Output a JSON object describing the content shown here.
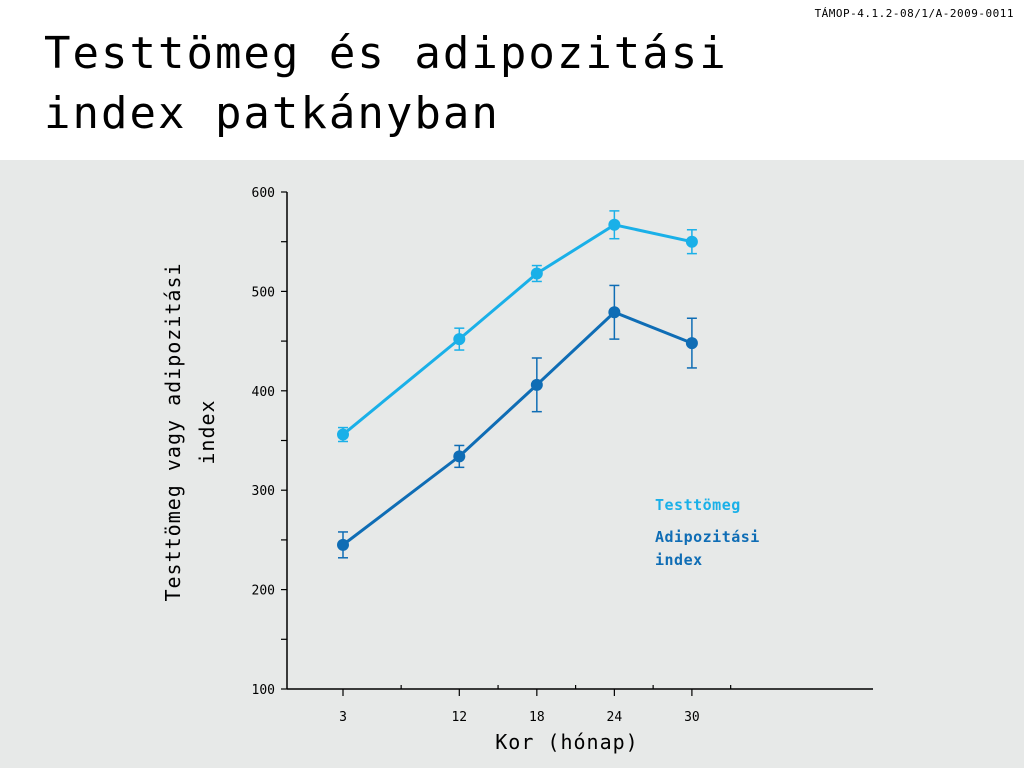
{
  "header": {
    "project_code": "TÁMOP-4.1.2-08/1/A-2009-0011",
    "title_line1": "Testtömeg és adipozitási",
    "title_line2": "index patkányban"
  },
  "colors": {
    "panel_bg": "#e7e9e8",
    "body_weight": "#1ab0e8",
    "adiposity": "#0f6db5"
  },
  "chart_data": {
    "type": "line",
    "title": "",
    "xlabel": "Kor (hónap)",
    "ylabel_lines": [
      "Testtömeg vagy adipozitási",
      "index"
    ],
    "x": [
      3,
      12,
      18,
      24,
      30
    ],
    "x_ticks": [
      "3",
      "12",
      "18",
      "24",
      "30"
    ],
    "xlim": [
      0,
      35
    ],
    "ylim": [
      100,
      600
    ],
    "y_ticks": [
      100,
      200,
      300,
      400,
      500,
      600
    ],
    "y_tick_labels": [
      "100",
      "200",
      "300",
      "400",
      "500",
      "600"
    ],
    "grid": false,
    "legend_placement": "right",
    "series": [
      {
        "name": "Testtömeg",
        "values": [
          356,
          452,
          518,
          567,
          550
        ],
        "error": [
          7,
          11,
          8,
          14,
          12
        ],
        "color": "#1ab0e8"
      },
      {
        "name": "Adipozitási index",
        "name_lines": [
          "Adipozitási",
          "index"
        ],
        "values": [
          245,
          334,
          406,
          479,
          448
        ],
        "error": [
          13,
          11,
          27,
          27,
          25
        ],
        "color": "#0f6db5"
      }
    ]
  }
}
